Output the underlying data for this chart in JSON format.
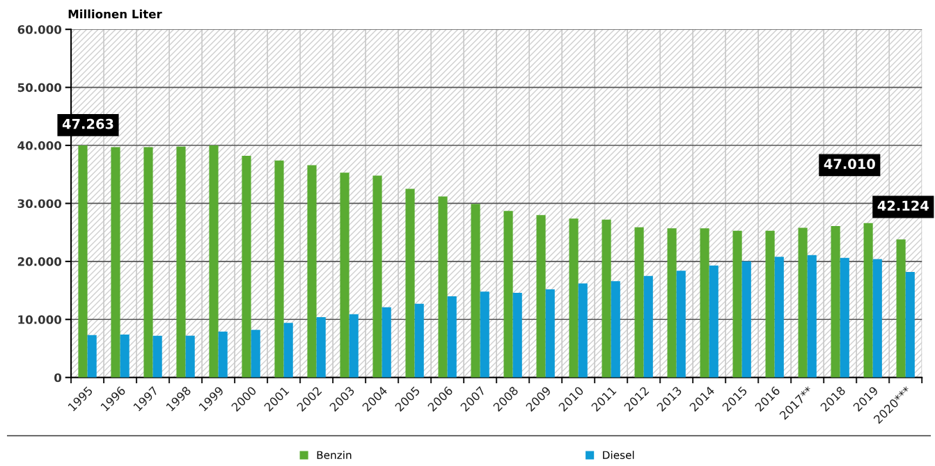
{
  "chart_data": {
    "type": "bar",
    "ylabel": "Millionen Liter",
    "categories": [
      "1995",
      "1996",
      "1997",
      "1998",
      "1999",
      "2000",
      "2001",
      "2002",
      "2003",
      "2004",
      "2005",
      "2006",
      "2007",
      "2008",
      "2009",
      "2010",
      "2011",
      "2012",
      "2013",
      "2014",
      "2015",
      "2016",
      "2017**",
      "2018",
      "2019",
      "2020***"
    ],
    "series": [
      {
        "name": "Benzin",
        "color": "#5aab32",
        "values": [
          40000,
          39700,
          39700,
          39800,
          40000,
          38200,
          37400,
          36600,
          35300,
          34800,
          32500,
          31200,
          29900,
          28700,
          28000,
          27400,
          27200,
          25900,
          25700,
          25700,
          25300,
          25300,
          25800,
          26100,
          26600,
          23800
        ]
      },
      {
        "name": "Diesel",
        "color": "#0e9bd6",
        "values": [
          7300,
          7400,
          7200,
          7200,
          7900,
          8200,
          9400,
          10400,
          10900,
          12100,
          12700,
          14000,
          14800,
          14600,
          15200,
          16200,
          16600,
          17500,
          18400,
          19300,
          20000,
          20800,
          21100,
          20600,
          20400,
          18200
        ]
      }
    ],
    "ylim": [
      0,
      60000
    ],
    "yticks": [
      0,
      {
        "value": 10000,
        "label": "10.000"
      },
      {
        "value": 20000,
        "label": "20.000"
      },
      {
        "value": 30000,
        "label": "30.000"
      },
      {
        "value": 40000,
        "label": "40.000"
      },
      {
        "value": 50000,
        "label": "50.000"
      },
      {
        "value": 60000,
        "label": "60.000"
      }
    ],
    "grid": true,
    "legend": "bottom",
    "annotations": [
      "47.263",
      "47.010",
      "42.124"
    ]
  }
}
